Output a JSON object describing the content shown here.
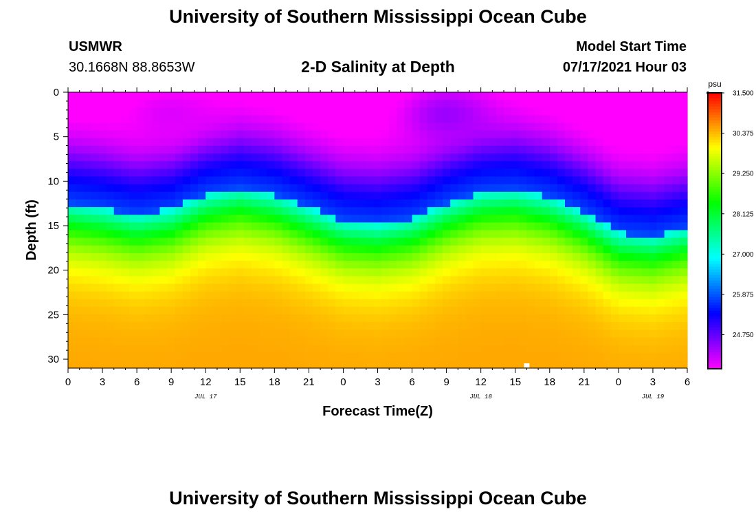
{
  "page": {
    "title_top": "University of Southern Mississippi Ocean Cube",
    "title_bottom": "University of Southern Mississippi Ocean Cube",
    "station": "USMWR",
    "coords": "30.1668N  88.8653W",
    "plot_title": "2-D Salinity at Depth",
    "model_label": "Model Start Time",
    "model_time": "07/17/2021 Hour 03"
  },
  "colors": {
    "min": "#ff00ff",
    "low": "#0000ff",
    "mid": "#00ffff",
    "green": "#00ff00",
    "yellow": "#ffff00",
    "high": "#ff0000"
  },
  "chart_data": {
    "type": "heatmap",
    "title": "2-D Salinity at Depth",
    "xlabel": "Forecast Time(Z)",
    "ylabel": "Depth (ft)",
    "xlim": [
      0,
      54
    ],
    "ylim": [
      0,
      31
    ],
    "x_ticks": [
      0,
      3,
      6,
      9,
      12,
      15,
      18,
      21,
      24,
      27,
      30,
      33,
      36,
      39,
      42,
      45,
      48,
      51,
      54
    ],
    "x_tick_labels": [
      "0",
      "3",
      "6",
      "9",
      "12",
      "15",
      "18",
      "21",
      "0",
      "3",
      "6",
      "9",
      "12",
      "15",
      "18",
      "21",
      "0",
      "3",
      "6"
    ],
    "y_ticks": [
      0,
      5,
      10,
      15,
      20,
      25,
      30
    ],
    "y_tick_labels": [
      "0",
      "5",
      "10",
      "15",
      "20",
      "25",
      "30"
    ],
    "date_labels": [
      {
        "x": 12,
        "label": "JUL 17"
      },
      {
        "x": 36,
        "label": "JUL 18"
      },
      {
        "x": 51,
        "label": "JUL 19"
      }
    ],
    "colorbar": {
      "unit": "psu",
      "min": 23.8,
      "max": 31.5,
      "tick_values": [
        31.5,
        30.375,
        29.25,
        28.125,
        27.0,
        25.875,
        24.75
      ],
      "tick_labels": [
        "31.500",
        "30.375",
        "29.250",
        "28.125",
        "27.000",
        "25.875",
        "24.750"
      ]
    },
    "marker": {
      "x": 40,
      "y": 30.7
    },
    "halocline_depth": [
      {
        "x": 0,
        "depth": 12.5
      },
      {
        "x": 3,
        "depth": 13.0
      },
      {
        "x": 6,
        "depth": 13.8
      },
      {
        "x": 9,
        "depth": 13.2
      },
      {
        "x": 12,
        "depth": 11.5
      },
      {
        "x": 15,
        "depth": 10.8
      },
      {
        "x": 18,
        "depth": 11.5
      },
      {
        "x": 21,
        "depth": 13.0
      },
      {
        "x": 24,
        "depth": 14.5
      },
      {
        "x": 27,
        "depth": 14.8
      },
      {
        "x": 30,
        "depth": 14.2
      },
      {
        "x": 33,
        "depth": 12.5
      },
      {
        "x": 36,
        "depth": 11.2
      },
      {
        "x": 39,
        "depth": 11.0
      },
      {
        "x": 42,
        "depth": 11.8
      },
      {
        "x": 45,
        "depth": 13.5
      },
      {
        "x": 48,
        "depth": 15.8
      },
      {
        "x": 51,
        "depth": 16.2
      },
      {
        "x": 54,
        "depth": 15.3
      }
    ]
  }
}
